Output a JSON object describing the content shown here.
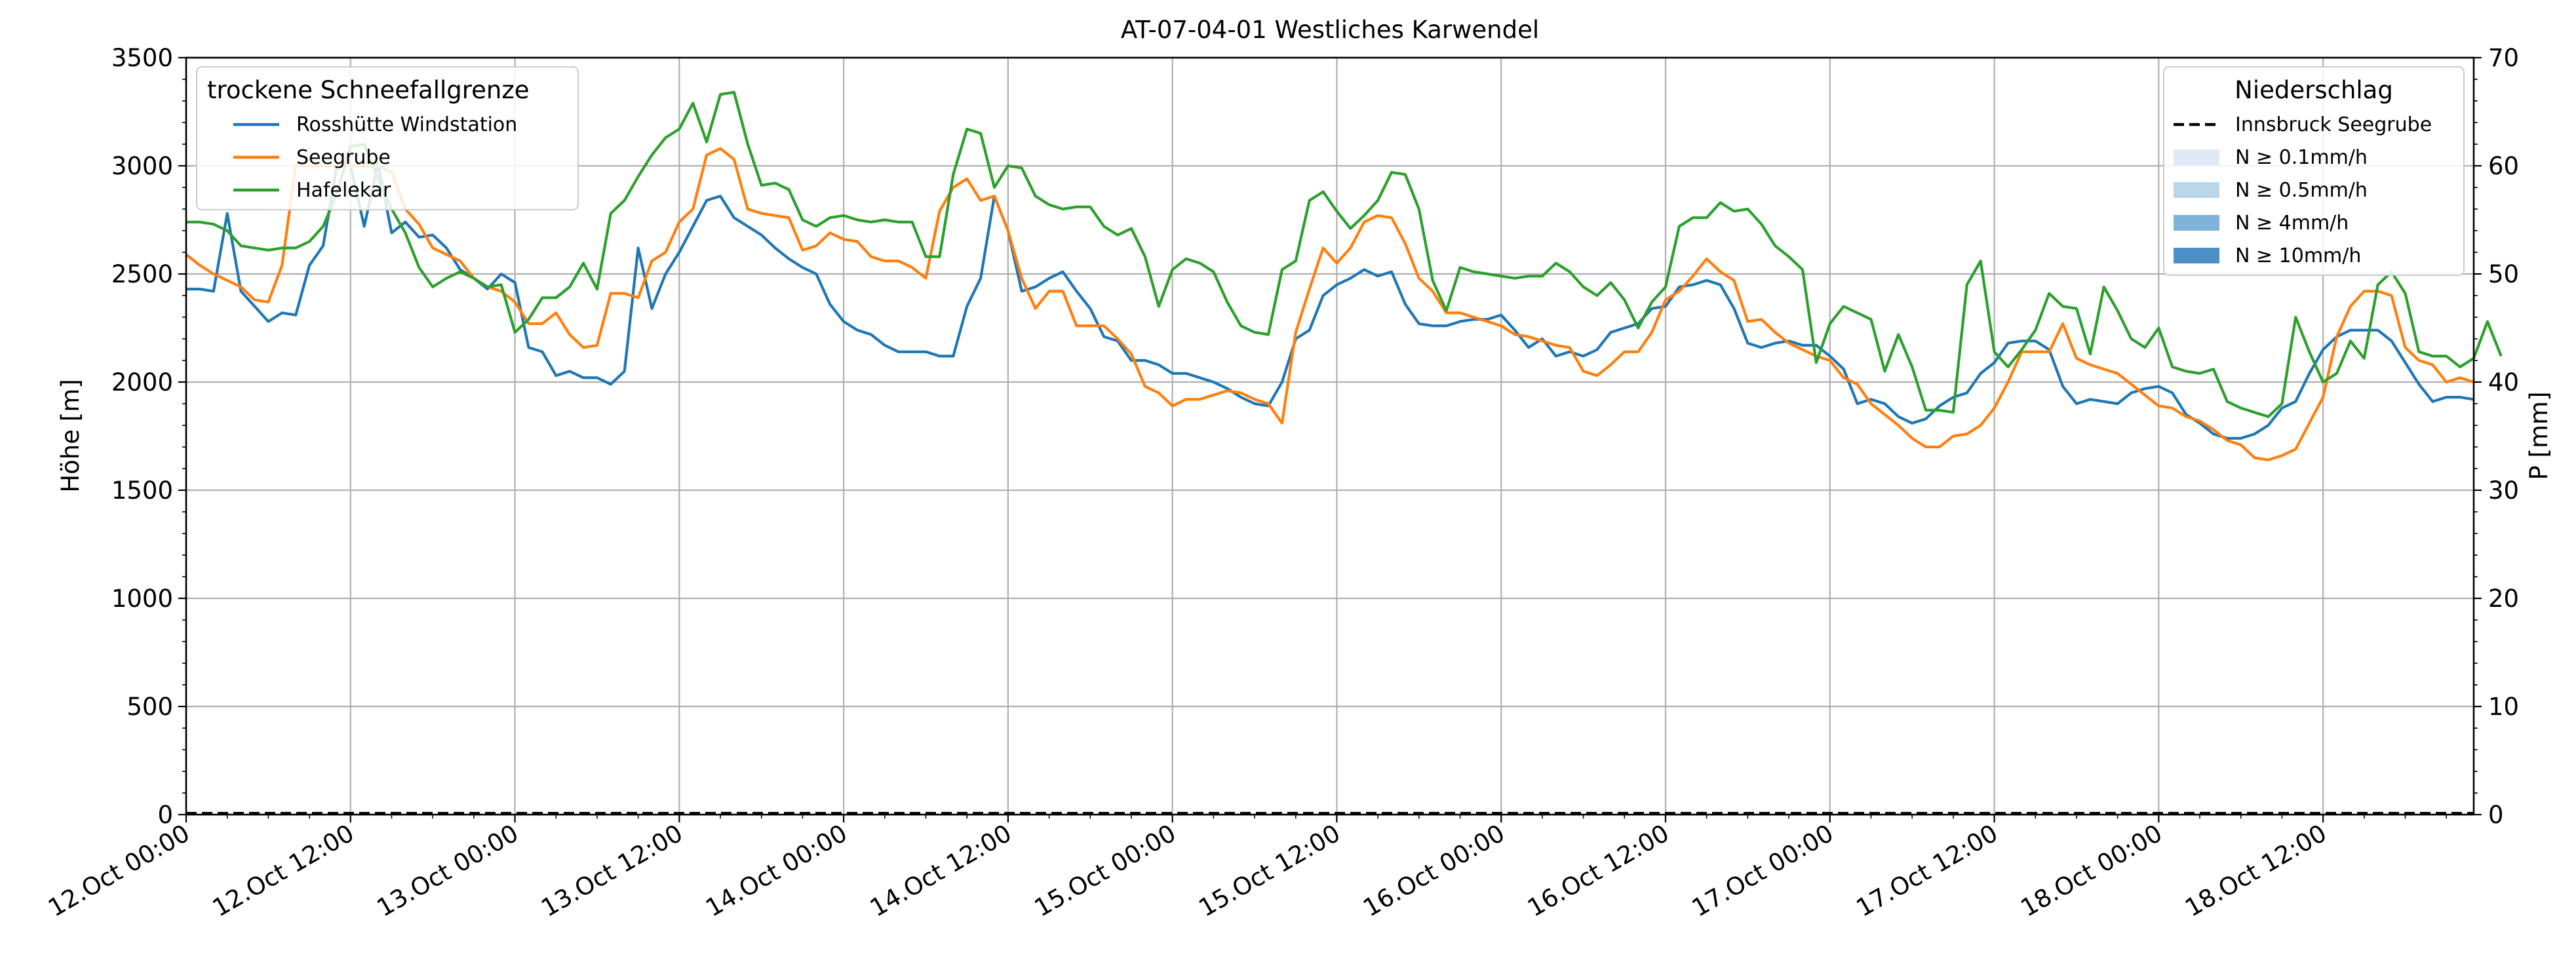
{
  "chart_data": {
    "type": "line",
    "title": "AT-07-04-01 Westliches Karwendel",
    "ylabel": "Höhe [m]",
    "y2label": "P [mm]",
    "ylim": [
      0,
      3500
    ],
    "y2lim": [
      0,
      70
    ],
    "grid": true,
    "x_start": "12.Oct 00:00",
    "x_step_hours": 1,
    "x_hours_span": 167,
    "xticks": [
      {
        "hour": 0,
        "label": "12.Oct 00:00"
      },
      {
        "hour": 12,
        "label": "12.Oct 12:00"
      },
      {
        "hour": 24,
        "label": "13.Oct 00:00"
      },
      {
        "hour": 36,
        "label": "13.Oct 12:00"
      },
      {
        "hour": 48,
        "label": "14.Oct 00:00"
      },
      {
        "hour": 60,
        "label": "14.Oct 12:00"
      },
      {
        "hour": 72,
        "label": "15.Oct 00:00"
      },
      {
        "hour": 84,
        "label": "15.Oct 12:00"
      },
      {
        "hour": 96,
        "label": "16.Oct 00:00"
      },
      {
        "hour": 108,
        "label": "16.Oct 12:00"
      },
      {
        "hour": 120,
        "label": "17.Oct 00:00"
      },
      {
        "hour": 132,
        "label": "17.Oct 12:00"
      },
      {
        "hour": 144,
        "label": "18.Oct 00:00"
      },
      {
        "hour": 156,
        "label": "18.Oct 12:00"
      }
    ],
    "yticks": [
      0,
      500,
      1000,
      1500,
      2000,
      2500,
      3000,
      3500
    ],
    "y2ticks": [
      0,
      10,
      20,
      30,
      40,
      50,
      60,
      70
    ],
    "legend_left": {
      "title": "trockene Schneefallgrenze",
      "position": "top-left"
    },
    "legend_right": {
      "title": "Niederschlag",
      "position": "top-right",
      "entries": [
        {
          "label": "Innsbruck Seegrube",
          "style": "dashed",
          "color": "#000000"
        },
        {
          "label": "N ≥ 0.1mm/h",
          "style": "patch",
          "color": "#deebf7"
        },
        {
          "label": "N ≥ 0.5mm/h",
          "style": "patch",
          "color": "#b9d6ec"
        },
        {
          "label": "N ≥ 4mm/h",
          "style": "patch",
          "color": "#7fb3da"
        },
        {
          "label": "N ≥ 10mm/h",
          "style": "patch",
          "color": "#4a90c6"
        }
      ]
    },
    "precipitation": {
      "name": "Innsbruck Seegrube",
      "value_mm": 0
    },
    "series": [
      {
        "name": "Rosshütte Windstation",
        "color": "#1f77b4",
        "values": [
          2430,
          2430,
          2420,
          2780,
          2420,
          2350,
          2280,
          2320,
          2310,
          2540,
          2630,
          3000,
          3000,
          2720,
          3010,
          2690,
          2740,
          2670,
          2680,
          2620,
          2520,
          2480,
          2430,
          2500,
          2460,
          2160,
          2140,
          2030,
          2050,
          2020,
          2020,
          1990,
          2050,
          2620,
          2340,
          2500,
          2600,
          2720,
          2840,
          2860,
          2760,
          2720,
          2680,
          2620,
          2570,
          2530,
          2500,
          2360,
          2280,
          2240,
          2220,
          2170,
          2140,
          2140,
          2140,
          2120,
          2120,
          2350,
          2480,
          2860,
          2700,
          2420,
          2440,
          2480,
          2510,
          2420,
          2340,
          2210,
          2190,
          2100,
          2100,
          2080,
          2040,
          2040,
          2020,
          2000,
          1970,
          1930,
          1900,
          1890,
          2000,
          2200,
          2240,
          2400,
          2450,
          2480,
          2520,
          2490,
          2510,
          2360,
          2270,
          2260,
          2260,
          2280,
          2290,
          2290,
          2310,
          2240,
          2160,
          2200,
          2120,
          2140,
          2120,
          2150,
          2230,
          2250,
          2270,
          2340,
          2350,
          2440,
          2450,
          2470,
          2450,
          2340,
          2180,
          2160,
          2180,
          2190,
          2170,
          2170,
          2120,
          2060,
          1900,
          1920,
          1900,
          1840,
          1810,
          1830,
          1890,
          1930,
          1950,
          2040,
          2090,
          2180,
          2190,
          2190,
          2150,
          1980,
          1900,
          1920,
          1910,
          1900,
          1950,
          1970,
          1980,
          1950,
          1850,
          1810,
          1760,
          1740,
          1740,
          1760,
          1800,
          1880,
          1910,
          2040,
          2150,
          2210,
          2240,
          2240,
          2240,
          2190,
          2090,
          1990,
          1910,
          1930,
          1930,
          1920
        ]
      },
      {
        "name": "Seegrube",
        "color": "#ff7f0e",
        "values": [
          2590,
          2540,
          2500,
          2470,
          2440,
          2380,
          2370,
          2540,
          3000,
          3000,
          3000,
          3000,
          3000,
          3000,
          3000,
          2970,
          2800,
          2730,
          2620,
          2590,
          2560,
          2480,
          2440,
          2420,
          2370,
          2270,
          2270,
          2320,
          2220,
          2160,
          2170,
          2410,
          2410,
          2390,
          2560,
          2600,
          2740,
          2800,
          3050,
          3080,
          3030,
          2800,
          2780,
          2770,
          2760,
          2610,
          2630,
          2690,
          2660,
          2650,
          2580,
          2560,
          2560,
          2530,
          2480,
          2790,
          2900,
          2940,
          2840,
          2860,
          2700,
          2480,
          2340,
          2420,
          2420,
          2260,
          2260,
          2260,
          2200,
          2130,
          1980,
          1950,
          1890,
          1920,
          1920,
          1940,
          1960,
          1950,
          1920,
          1900,
          1810,
          2230,
          2430,
          2620,
          2550,
          2620,
          2740,
          2770,
          2760,
          2640,
          2480,
          2420,
          2320,
          2320,
          2300,
          2280,
          2260,
          2220,
          2210,
          2190,
          2170,
          2160,
          2050,
          2030,
          2080,
          2140,
          2140,
          2230,
          2380,
          2420,
          2490,
          2570,
          2510,
          2470,
          2280,
          2290,
          2230,
          2180,
          2150,
          2120,
          2100,
          2020,
          1990,
          1900,
          1850,
          1800,
          1740,
          1700,
          1700,
          1750,
          1760,
          1800,
          1880,
          2000,
          2140,
          2140,
          2140,
          2270,
          2110,
          2080,
          2060,
          2040,
          1990,
          1940,
          1890,
          1880,
          1840,
          1820,
          1780,
          1730,
          1710,
          1650,
          1640,
          1660,
          1690,
          1810,
          1930,
          2210,
          2350,
          2420,
          2420,
          2400,
          2160,
          2100,
          2080,
          2000,
          2020,
          2000
        ]
      },
      {
        "name": "Hafelekar",
        "color": "#2ca02c",
        "values": [
          2740,
          2740,
          2730,
          2700,
          2630,
          2620,
          2610,
          2620,
          2620,
          2650,
          2720,
          2870,
          3090,
          3100,
          2940,
          2800,
          2690,
          2530,
          2440,
          2480,
          2510,
          2480,
          2440,
          2450,
          2230,
          2290,
          2390,
          2390,
          2440,
          2550,
          2430,
          2780,
          2840,
          2950,
          3050,
          3130,
          3170,
          3290,
          3110,
          3330,
          3340,
          3100,
          2910,
          2920,
          2890,
          2750,
          2720,
          2760,
          2770,
          2750,
          2740,
          2750,
          2740,
          2740,
          2580,
          2580,
          2960,
          3170,
          3150,
          2900,
          3000,
          2990,
          2860,
          2820,
          2800,
          2810,
          2810,
          2720,
          2680,
          2710,
          2580,
          2350,
          2520,
          2570,
          2550,
          2510,
          2370,
          2260,
          2230,
          2220,
          2520,
          2560,
          2840,
          2880,
          2790,
          2710,
          2770,
          2840,
          2970,
          2960,
          2800,
          2470,
          2330,
          2530,
          2510,
          2500,
          2490,
          2480,
          2490,
          2490,
          2550,
          2510,
          2440,
          2400,
          2460,
          2380,
          2250,
          2370,
          2440,
          2720,
          2760,
          2760,
          2830,
          2790,
          2800,
          2730,
          2630,
          2580,
          2520,
          2090,
          2270,
          2350,
          2320,
          2290,
          2050,
          2220,
          2070,
          1870,
          1870,
          1860,
          2450,
          2560,
          2140,
          2070,
          2150,
          2240,
          2410,
          2350,
          2340,
          2130,
          2440,
          2330,
          2200,
          2160,
          2250,
          2070,
          2050,
          2040,
          2060,
          1910,
          1880,
          1860,
          1840,
          1900,
          2300,
          2140,
          2000,
          2040,
          2190,
          2110,
          2450,
          2510,
          2410,
          2140,
          2120,
          2120,
          2070,
          2110,
          2280,
          2120
        ]
      }
    ]
  }
}
